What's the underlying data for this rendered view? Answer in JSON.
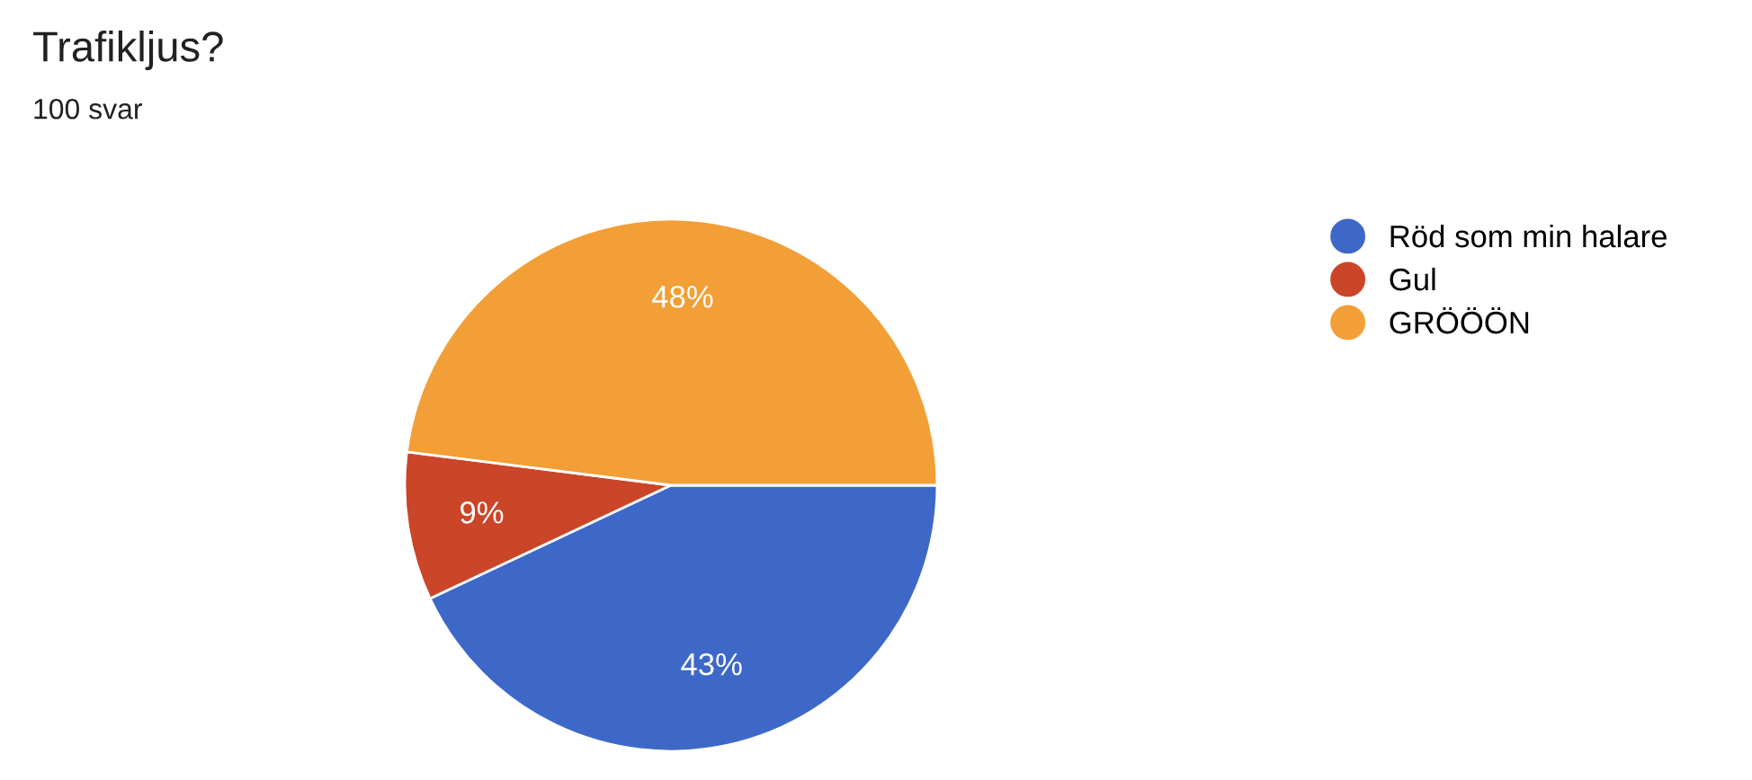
{
  "chart_data": {
    "type": "pie",
    "title": "Trafikljus?",
    "subtitle": "100 svar",
    "categories": [
      "Röd som min halare",
      "Gul",
      "GRÖÖÖN"
    ],
    "values": [
      43,
      9,
      48
    ],
    "colors": [
      "#3e68c8",
      "#cb4528",
      "#f29f38"
    ],
    "value_labels": [
      "43%",
      "9%",
      "48%"
    ],
    "legend": "top right"
  }
}
